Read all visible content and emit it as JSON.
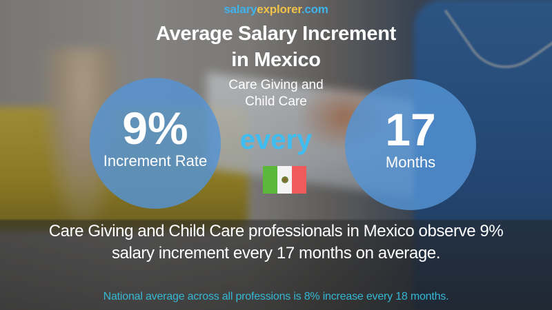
{
  "brand": {
    "part1": "salary",
    "part2": "explorer",
    "part3": ".com"
  },
  "title": {
    "line1": "Average Salary Increment",
    "line2": "in Mexico"
  },
  "subtitle": {
    "line1": "Care Giving and",
    "line2": "Child Care"
  },
  "increment_circle": {
    "value": "9%",
    "label": "Increment Rate"
  },
  "connector": "every",
  "period_circle": {
    "value": "17",
    "label": "Months"
  },
  "flag": {
    "country": "Mexico",
    "icon": "mexico-flag-icon",
    "colors": {
      "green": "#5cb83a",
      "white": "#f4f4f4",
      "red": "#ef5a5a"
    }
  },
  "summary": {
    "line1": "Care Giving and Child Care professionals in Mexico observe 9%",
    "line2": "salary increment every 17 months on average."
  },
  "national_note": "National average across all professions is 8% increase every 18 months.",
  "colors": {
    "brand_blue": "#3fb3ea",
    "brand_yellow": "#f1c24a",
    "circle_blue": "#5494d6",
    "every_blue": "#3fbcf0",
    "national_teal": "#35b8d4"
  }
}
